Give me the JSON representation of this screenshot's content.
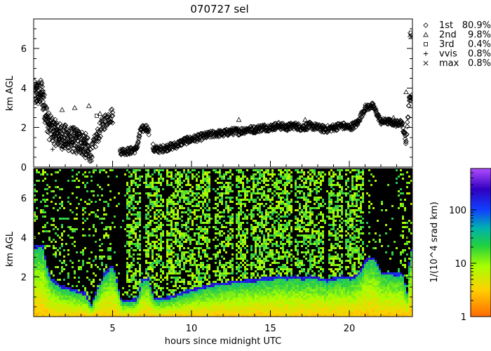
{
  "chart_data": [
    {
      "type": "scatter",
      "title": "070727 sel",
      "ylabel": "km AGL",
      "xlim": [
        0,
        24
      ],
      "ylim": [
        0,
        7.5
      ],
      "yticks": [
        0,
        2,
        4,
        6
      ],
      "legend_placement": "right",
      "series": [
        {
          "name": "1st",
          "percent": "80.9%",
          "marker": "diamond",
          "x": [
            0.2,
            0.5,
            0.8,
            1.0,
            1.3,
            1.6,
            2.0,
            2.4,
            2.8,
            3.2,
            3.6,
            4.0,
            4.4,
            4.8,
            5.0,
            5.5,
            6.0,
            6.5,
            6.8,
            7.2,
            7.6,
            8.0,
            8.5,
            9.0,
            9.5,
            10.0,
            10.5,
            11.0,
            11.5,
            12.0,
            12.5,
            13.0,
            13.5,
            14.0,
            14.5,
            15.0,
            15.5,
            16.0,
            16.5,
            17.0,
            17.5,
            18.0,
            18.5,
            19.0,
            19.5,
            20.0,
            20.5,
            21.0,
            21.5,
            22.0,
            22.5,
            23.0,
            23.3,
            23.6,
            23.8
          ],
          "y": [
            3.7,
            3.8,
            2.6,
            2.0,
            1.8,
            1.6,
            1.5,
            1.4,
            1.3,
            1.2,
            0.6,
            1.5,
            2.2,
            2.6,
            2.6,
            0.8,
            0.8,
            0.9,
            1.9,
            2.0,
            0.9,
            0.9,
            1.0,
            1.1,
            1.3,
            1.4,
            1.5,
            1.6,
            1.7,
            1.7,
            1.8,
            1.8,
            1.9,
            1.9,
            2.0,
            2.0,
            2.1,
            2.0,
            2.1,
            2.0,
            2.1,
            2.0,
            1.9,
            2.0,
            2.1,
            2.0,
            2.2,
            3.0,
            3.1,
            2.3,
            2.3,
            2.2,
            2.3,
            1.3,
            3.5
          ]
        },
        {
          "name": "2nd",
          "percent": "9.8%",
          "marker": "triangle",
          "x": [
            0.3,
            1.8,
            2.6,
            3.5,
            4.2,
            13.0,
            17.2,
            22.8,
            23.6
          ],
          "y": [
            3.9,
            2.9,
            3.0,
            3.1,
            2.7,
            2.4,
            2.4,
            2.5,
            3.8
          ]
        },
        {
          "name": "3rd",
          "percent": "0.4%",
          "marker": "square",
          "x": [
            0.6,
            4.0,
            23.9
          ],
          "y": [
            3.8,
            2.6,
            6.8
          ]
        },
        {
          "name": "vvis",
          "percent": "0.8%",
          "marker": "plus",
          "x": [
            1.2,
            3.4
          ],
          "y": [
            0.9,
            0.5
          ]
        },
        {
          "name": "max",
          "percent": "0.8%",
          "marker": "cross",
          "x": [
            23.85,
            23.9
          ],
          "y": [
            6.7,
            6.6
          ]
        }
      ]
    },
    {
      "type": "heatmap",
      "ylabel": "km AGL",
      "xlabel": "hours since midnight UTC",
      "xlim": [
        0,
        24
      ],
      "ylim": [
        0,
        7.5
      ],
      "xticks": [
        5,
        10,
        15,
        20
      ],
      "yticks": [
        2,
        4,
        6
      ],
      "colorbar": {
        "label": "1/(10^4 srad km)",
        "scale": "log",
        "range": [
          1,
          600
        ],
        "ticks": [
          1,
          10,
          100
        ]
      },
      "colors": {
        "background": "#000000",
        "low": "#ff6a00",
        "mid": "#6ee04a",
        "high": "#2010d0",
        "top": "#b14cff"
      }
    }
  ]
}
